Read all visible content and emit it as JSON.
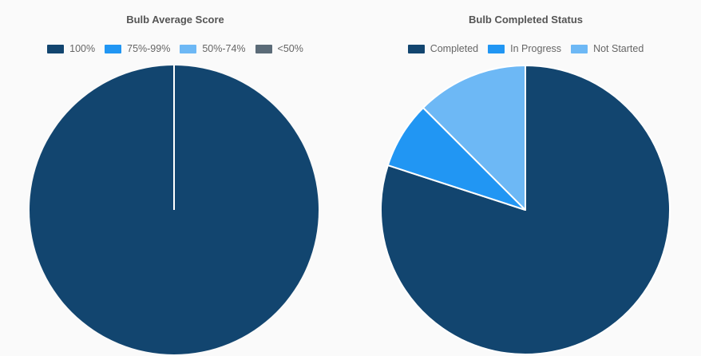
{
  "chart_data": [
    {
      "type": "pie",
      "title": "Bulb Average Score",
      "legend_position": "top",
      "categories": [
        "100%",
        "75%-99%",
        "50%-74%",
        "<50%"
      ],
      "values": [
        100,
        0,
        0,
        0
      ],
      "colors": [
        "#12456f",
        "#2196f3",
        "#6db8f5",
        "#5b6b78"
      ]
    },
    {
      "type": "pie",
      "title": "Bulb Completed Status",
      "legend_position": "top",
      "categories": [
        "Completed",
        "In Progress",
        "Not Started"
      ],
      "values": [
        80,
        7.5,
        12.5
      ],
      "colors": [
        "#12456f",
        "#2196f3",
        "#6db8f5"
      ]
    }
  ]
}
